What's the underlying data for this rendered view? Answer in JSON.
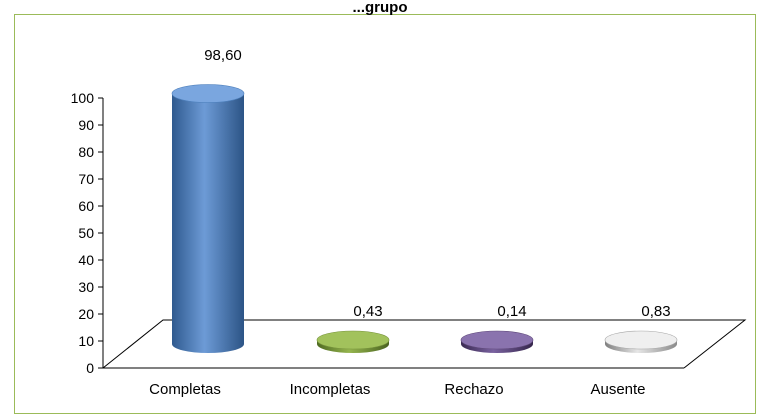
{
  "chart_data": {
    "type": "bar",
    "title": "...grupo",
    "categories": [
      "Completas",
      "Incompletas",
      "Rechazo",
      "Ausente"
    ],
    "values": [
      98.6,
      0.43,
      0.14,
      0.83
    ],
    "data_labels": [
      "98,60",
      "0,43",
      "0,14",
      "0,83"
    ],
    "y_ticks": [
      "0",
      "10",
      "20",
      "30",
      "40",
      "50",
      "60",
      "70",
      "80",
      "90",
      "100"
    ],
    "ylim": [
      0,
      100
    ],
    "xlabel": "",
    "ylabel": "",
    "grid": false,
    "legend": "none",
    "style": "3d-cylinder",
    "colors": {
      "Completas": "#4f81bd",
      "Incompletas": "#77933c",
      "Rechazo": "#5f497a",
      "Ausente": "#a6a6a6",
      "frame": "#9bbb59"
    }
  }
}
